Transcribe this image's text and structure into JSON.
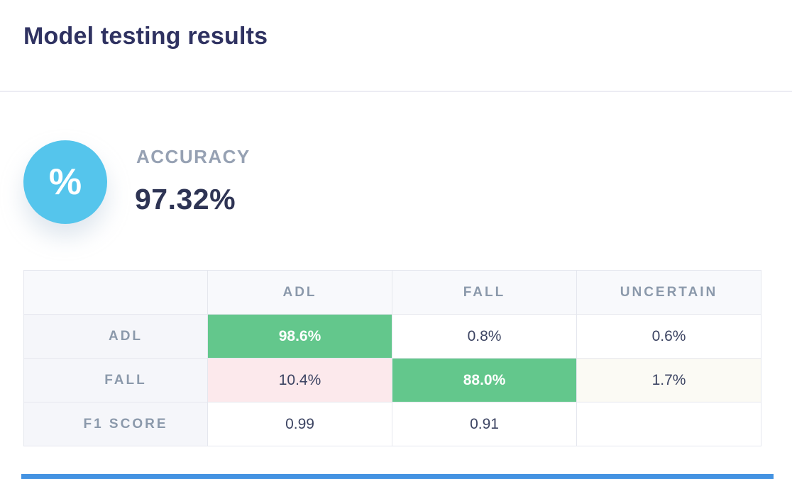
{
  "page": {
    "title": "Model testing results"
  },
  "accuracy_card": {
    "icon": "percent-icon",
    "icon_glyph": "%",
    "label": "ACCURACY",
    "value": "97.32%"
  },
  "confusion_table": {
    "columns": [
      "",
      "ADL",
      "FALL",
      "UNCERTAIN"
    ],
    "rows": [
      {
        "label": "ADL",
        "cells": [
          {
            "text": "98.6%",
            "highlight": "green"
          },
          {
            "text": "0.8%",
            "highlight": "none"
          },
          {
            "text": "0.6%",
            "highlight": "none"
          }
        ]
      },
      {
        "label": "FALL",
        "cells": [
          {
            "text": "10.4%",
            "highlight": "pink"
          },
          {
            "text": "88.0%",
            "highlight": "green"
          },
          {
            "text": "1.7%",
            "highlight": "none"
          }
        ]
      },
      {
        "label": "F1 SCORE",
        "cells": [
          {
            "text": "0.99",
            "highlight": "none"
          },
          {
            "text": "0.91",
            "highlight": "none"
          },
          {
            "text": "",
            "highlight": "none"
          }
        ]
      }
    ]
  },
  "colors": {
    "title_navy": "#2f3261",
    "value_navy": "#2e3454",
    "muted_gray": "#96a1b3",
    "table_gray": "#8b99ab",
    "accent_sky_blue": "#55c5ec",
    "positive_green": "#63c78c",
    "negative_pink": "#fce9ec",
    "divider_gray": "#ececf3",
    "bottom_bar_blue": "#4493e2"
  }
}
